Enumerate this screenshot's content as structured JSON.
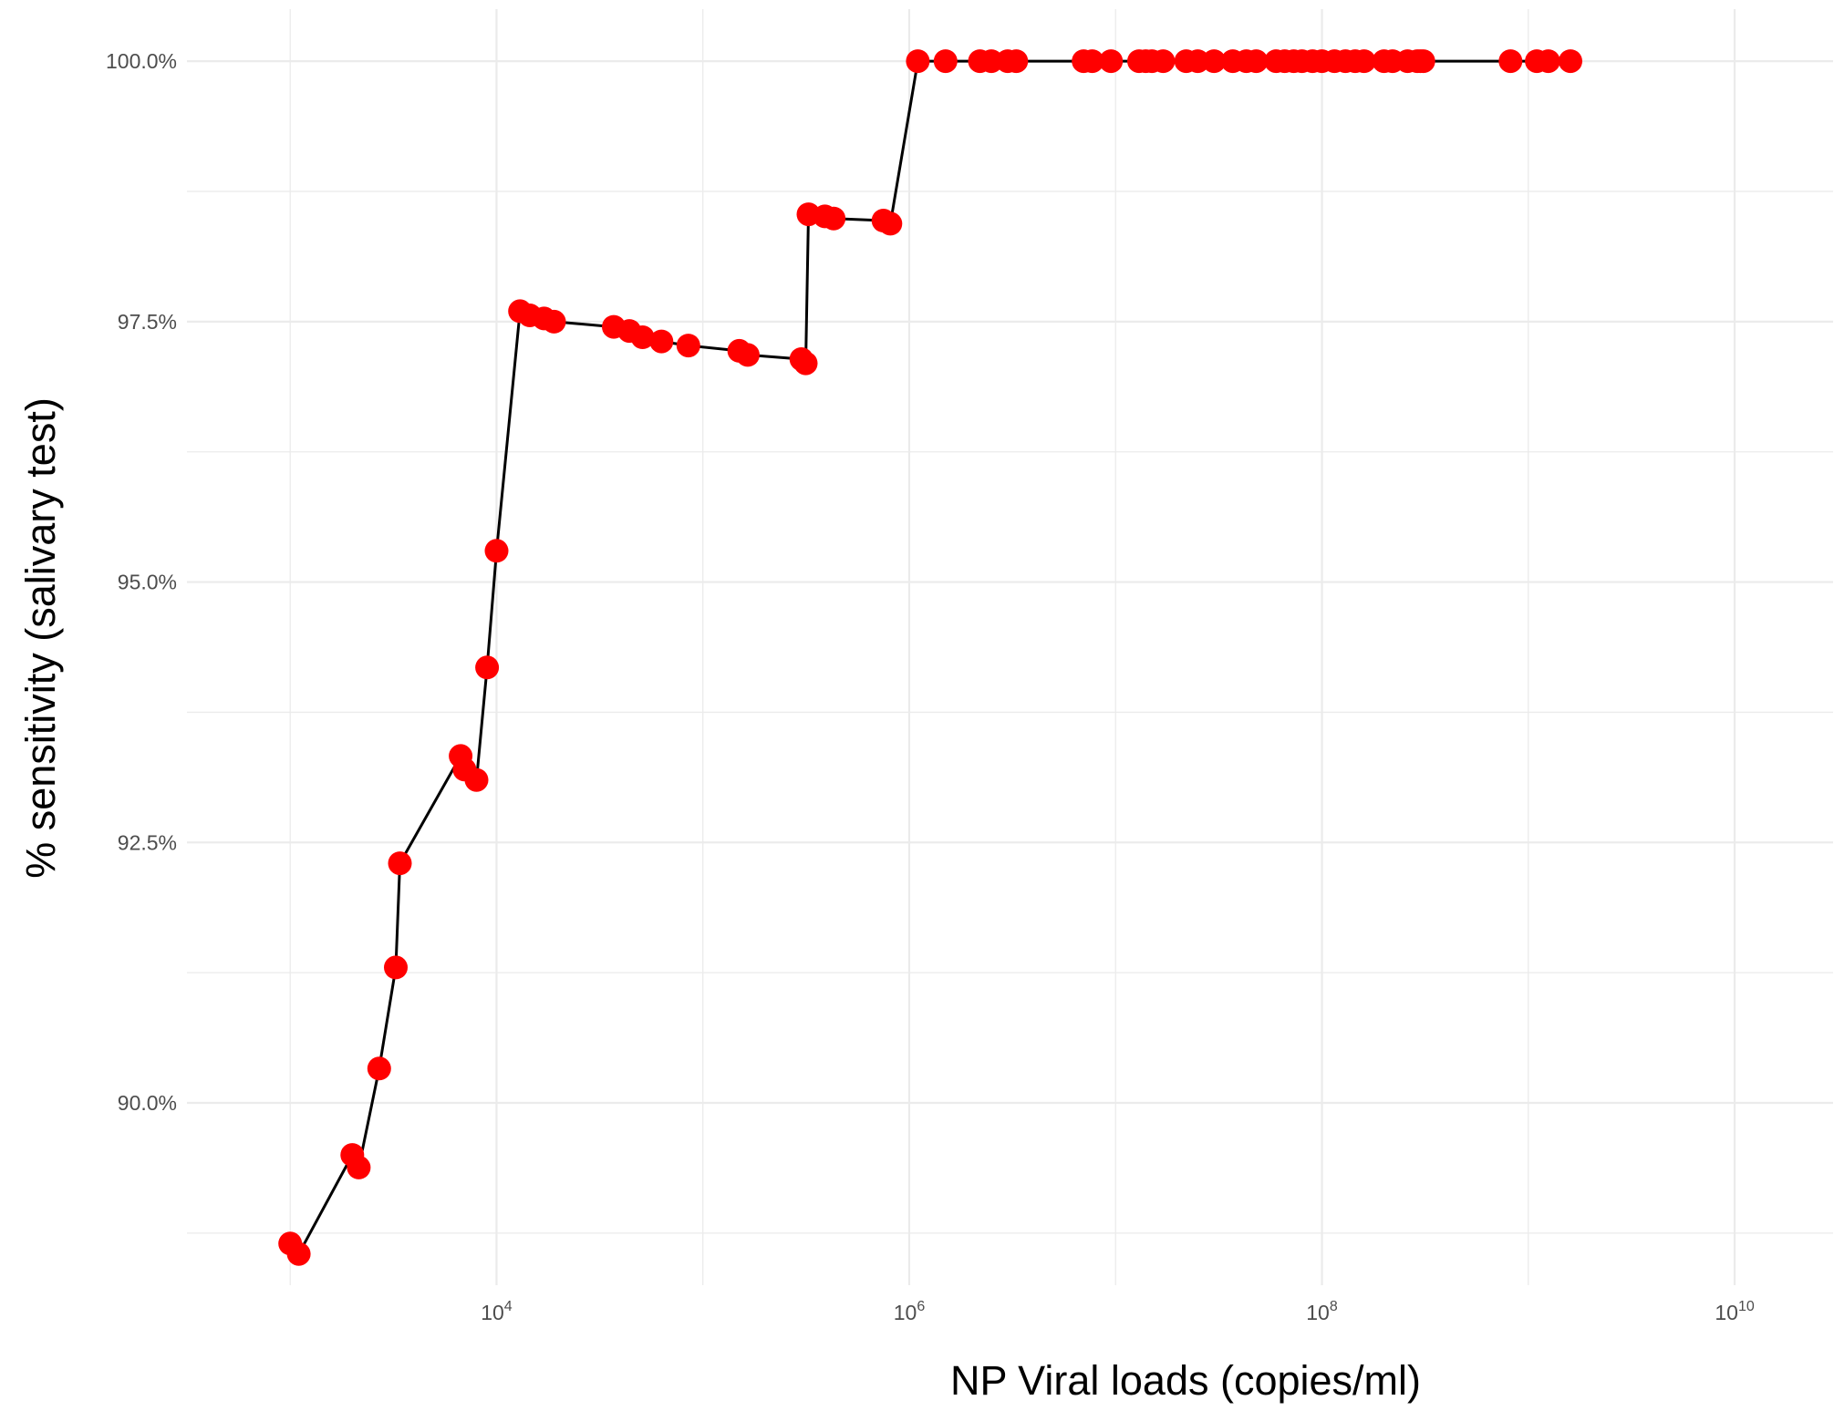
{
  "chart_data": {
    "type": "line",
    "title": "",
    "xlabel": "NP Viral loads (copies/ml)",
    "ylabel": "% sensitivity (salivary test)",
    "x_scale": "log10",
    "xlim": [
      316,
      30000000000
    ],
    "ylim": [
      88.25,
      100.5
    ],
    "grid": true,
    "legend": "none",
    "x_ticks": [
      {
        "value": 10000,
        "base": "10",
        "exp": "4"
      },
      {
        "value": 1000000,
        "base": "10",
        "exp": "6"
      },
      {
        "value": 100000000,
        "base": "10",
        "exp": "8"
      },
      {
        "value": 10000000000,
        "base": "10",
        "exp": "10"
      }
    ],
    "y_ticks": [
      {
        "value": 90.0,
        "label": "90.0%"
      },
      {
        "value": 92.5,
        "label": "92.5%"
      },
      {
        "value": 95.0,
        "label": "95.0%"
      },
      {
        "value": 97.5,
        "label": "97.5%"
      },
      {
        "value": 100.0,
        "label": "100.0%"
      }
    ],
    "point_color": "#ff0000",
    "line_color": "#000000",
    "series": [
      {
        "x": [
          1000,
          1100,
          2000,
          2150,
          2700,
          3250,
          3400,
          6700,
          7000,
          8000,
          9000,
          10000,
          13000,
          14500,
          17000,
          19000,
          37000,
          44000,
          51000,
          63000,
          85000,
          150000,
          165000,
          300000,
          315000,
          325000,
          390000,
          430000,
          750000,
          810000,
          1100000,
          1500000,
          2200000,
          2500000,
          3000000,
          3300000,
          7000000,
          7700000,
          9500000,
          13000000,
          14000000,
          15000000,
          17000000,
          22000000,
          25000000,
          30000000,
          37000000,
          43000000,
          48000000,
          60000000,
          66000000,
          73000000,
          80000000,
          90000000,
          100000000,
          115000000,
          130000000,
          145000000,
          160000000,
          200000000,
          220000000,
          260000000,
          290000000,
          300000000,
          310000000,
          820000000,
          1100000000,
          1250000000,
          1600000000
        ],
        "y": [
          88.65,
          88.55,
          89.5,
          89.38,
          90.33,
          91.3,
          92.3,
          93.33,
          93.2,
          93.1,
          94.18,
          95.3,
          97.6,
          97.56,
          97.53,
          97.5,
          97.45,
          97.41,
          97.35,
          97.31,
          97.27,
          97.22,
          97.18,
          97.14,
          97.1,
          98.53,
          98.51,
          98.49,
          98.47,
          98.44,
          100,
          100,
          100,
          100,
          100,
          100,
          100,
          100,
          100,
          100,
          100,
          100,
          100,
          100,
          100,
          100,
          100,
          100,
          100,
          100,
          100,
          100,
          100,
          100,
          100,
          100,
          100,
          100,
          100,
          100,
          100,
          100,
          100,
          100,
          100,
          100,
          100,
          100,
          100
        ]
      }
    ]
  }
}
